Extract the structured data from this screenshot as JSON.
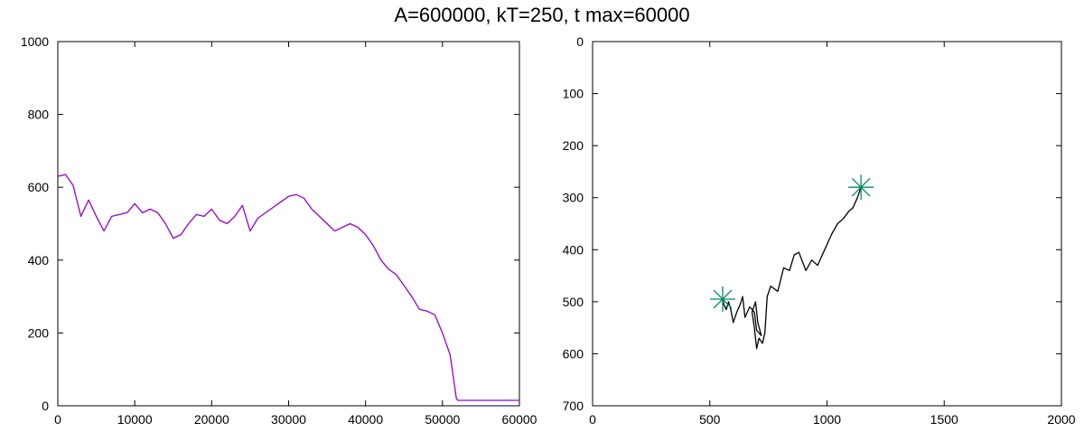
{
  "title": "A=600000, kT=250, t  max=60000",
  "colors": {
    "trace": "#9400d3",
    "path": "#000000",
    "marker": "#008b6b"
  },
  "chart_data": [
    {
      "type": "line",
      "title": "",
      "xlabel": "",
      "ylabel": "",
      "xlim": [
        0,
        60000
      ],
      "ylim": [
        0,
        1000
      ],
      "xticks": [
        "0",
        "10000",
        "20000",
        "30000",
        "40000",
        "50000",
        "60000"
      ],
      "yticks": [
        "0",
        "200",
        "400",
        "600",
        "800",
        "1000"
      ],
      "grid": false,
      "series": [
        {
          "x": [
            0,
            1000,
            2000,
            3000,
            4000,
            5000,
            6000,
            7000,
            8000,
            9000,
            10000,
            11000,
            12000,
            13000,
            14000,
            15000,
            16000,
            17000,
            18000,
            19000,
            20000,
            21000,
            22000,
            23000,
            24000,
            25000,
            26000,
            27000,
            28000,
            29000,
            30000,
            31000,
            32000,
            33000,
            34000,
            35000,
            36000,
            37000,
            38000,
            39000,
            40000,
            41000,
            42000,
            43000,
            44000,
            45000,
            46000,
            47000,
            48000,
            49000,
            50000,
            51000,
            51800,
            52000,
            60000
          ],
          "y": [
            630,
            635,
            605,
            520,
            565,
            520,
            480,
            520,
            525,
            530,
            555,
            530,
            540,
            530,
            500,
            460,
            470,
            500,
            525,
            520,
            540,
            510,
            500,
            520,
            550,
            480,
            515,
            530,
            545,
            560,
            575,
            580,
            570,
            540,
            520,
            500,
            480,
            490,
            500,
            490,
            470,
            440,
            400,
            375,
            360,
            330,
            300,
            265,
            260,
            250,
            200,
            140,
            20,
            15,
            15
          ]
        }
      ]
    },
    {
      "type": "line",
      "title": "",
      "xlabel": "",
      "ylabel": "",
      "xlim": [
        0,
        2000
      ],
      "ylim": [
        700,
        0
      ],
      "xticks": [
        "0",
        "500",
        "1000",
        "1500",
        "2000"
      ],
      "yticks": [
        "0",
        "100",
        "200",
        "300",
        "400",
        "500",
        "600",
        "700"
      ],
      "grid": false,
      "series": [
        {
          "x": [
            1145,
            1130,
            1110,
            1095,
            1070,
            1045,
            1020,
            990,
            960,
            935,
            910,
            880,
            860,
            840,
            815,
            790,
            760,
            745,
            740,
            735,
            725,
            710,
            700,
            690,
            680,
            695,
            705,
            720,
            700,
            690,
            670,
            650,
            640,
            630,
            615,
            600,
            590,
            580,
            570,
            560,
            555
          ],
          "y": [
            280,
            300,
            320,
            325,
            340,
            350,
            370,
            400,
            430,
            420,
            440,
            405,
            410,
            440,
            435,
            480,
            470,
            490,
            525,
            560,
            580,
            570,
            590,
            550,
            520,
            500,
            540,
            565,
            555,
            520,
            510,
            530,
            490,
            505,
            520,
            540,
            515,
            500,
            515,
            505,
            495
          ]
        }
      ],
      "markers": [
        {
          "x": 1145,
          "y": 280
        },
        {
          "x": 555,
          "y": 495
        }
      ]
    }
  ]
}
